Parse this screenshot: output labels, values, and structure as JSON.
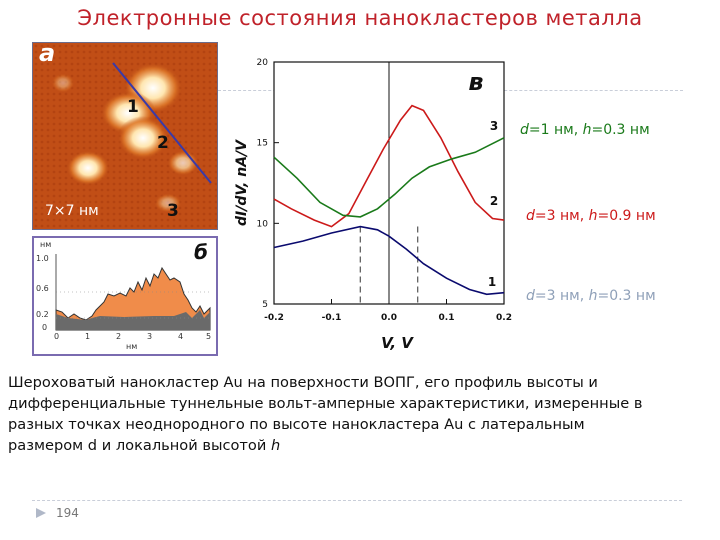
{
  "slide": {
    "title": "Электронные состояния нанокластеров металла",
    "page_number": "194"
  },
  "stm_image": {
    "label_letter": "а",
    "scale_label": "7×7 нм",
    "point_labels": [
      "1",
      "2",
      "3"
    ]
  },
  "profile_panel": {
    "label_letter": "б",
    "y_unit": "нм",
    "y_ticks": [
      "1.0",
      "0.6",
      "0.2",
      "0"
    ],
    "x_ticks": [
      "0",
      "1",
      "2",
      "3",
      "4",
      "5"
    ],
    "x_unit": "нм"
  },
  "chart_data": {
    "type": "line",
    "panel_label": "в",
    "xlabel": "V, V",
    "ylabel": "dI/dV, nA/V",
    "xlim": [
      -0.2,
      0.2
    ],
    "ylim": [
      5,
      20
    ],
    "x_ticks": [
      "-0.2",
      "-0.1",
      "0.0",
      "0.1",
      "0.2"
    ],
    "y_ticks": [
      "5",
      "10",
      "15",
      "20"
    ],
    "vertical_dashed_lines": [
      -0.05,
      0.05
    ],
    "series": [
      {
        "name": "1",
        "color": "#0a0a6e",
        "points": [
          [
            -0.2,
            8.5
          ],
          [
            -0.15,
            8.9
          ],
          [
            -0.1,
            9.4
          ],
          [
            -0.05,
            9.8
          ],
          [
            -0.02,
            9.6
          ],
          [
            0.0,
            9.2
          ],
          [
            0.03,
            8.4
          ],
          [
            0.06,
            7.5
          ],
          [
            0.1,
            6.6
          ],
          [
            0.14,
            5.9
          ],
          [
            0.17,
            5.6
          ],
          [
            0.2,
            5.7
          ]
        ]
      },
      {
        "name": "2",
        "color": "#cc1a1a",
        "points": [
          [
            -0.2,
            11.5
          ],
          [
            -0.17,
            10.9
          ],
          [
            -0.13,
            10.2
          ],
          [
            -0.1,
            9.8
          ],
          [
            -0.07,
            10.6
          ],
          [
            -0.04,
            12.6
          ],
          [
            -0.01,
            14.6
          ],
          [
            0.02,
            16.4
          ],
          [
            0.04,
            17.3
          ],
          [
            0.06,
            17.0
          ],
          [
            0.09,
            15.3
          ],
          [
            0.12,
            13.2
          ],
          [
            0.15,
            11.3
          ],
          [
            0.18,
            10.3
          ],
          [
            0.2,
            10.2
          ]
        ]
      },
      {
        "name": "3",
        "color": "#1a7a1a",
        "points": [
          [
            -0.2,
            14.1
          ],
          [
            -0.16,
            12.8
          ],
          [
            -0.12,
            11.3
          ],
          [
            -0.08,
            10.5
          ],
          [
            -0.05,
            10.4
          ],
          [
            -0.02,
            10.9
          ],
          [
            0.01,
            11.8
          ],
          [
            0.04,
            12.8
          ],
          [
            0.07,
            13.5
          ],
          [
            0.11,
            14.0
          ],
          [
            0.15,
            14.4
          ],
          [
            0.2,
            15.3
          ]
        ]
      }
    ]
  },
  "legend_labels": [
    {
      "d": "d",
      "dval": "=1 нм, ",
      "h": "h",
      "hval": "=0.3 нм",
      "color": "#1a7a1a"
    },
    {
      "d": "d",
      "dval": "=3 нм, ",
      "h": "h",
      "hval": "=0.9 нм",
      "color": "#cc1a1a"
    },
    {
      "d": "d",
      "dval": "=3 нм, ",
      "h": "h",
      "hval": "=0.3 нм",
      "color": "#8fa0b8"
    }
  ],
  "description": {
    "text": "Шероховатый нанокластер Au на поверхности ВОПГ, его профиль высоты и дифференциальные туннельные вольт-амперные характеристики, измеренные в разных точках неоднородного по высоте нанокластера Au с латеральным размером d и локальной высотой ",
    "italic_h": "h"
  }
}
